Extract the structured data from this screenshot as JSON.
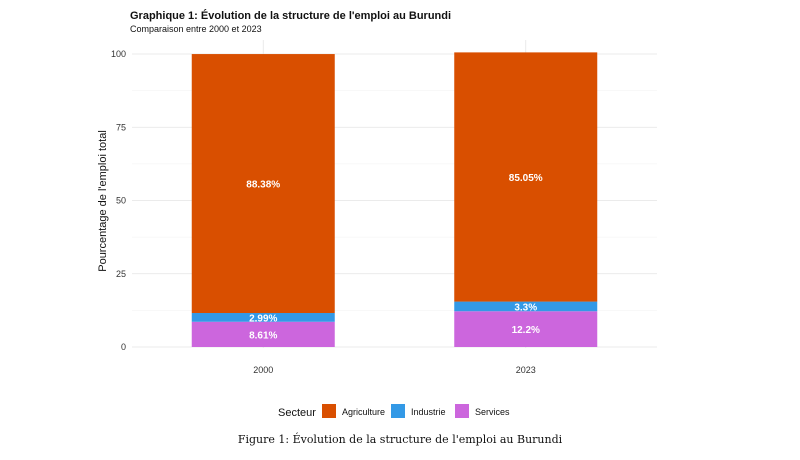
{
  "chart_data": {
    "type": "bar",
    "stacked": true,
    "title": "Graphique 1: Évolution de la structure de l'emploi au Burundi",
    "subtitle": "Comparaison entre 2000 et 2023",
    "xlabel": "",
    "ylabel": "Pourcentage de l'emploi total",
    "ylim": [
      0,
      100
    ],
    "yticks": [
      "0",
      "25",
      "50",
      "75",
      "100"
    ],
    "categories": [
      "2000",
      "2023"
    ],
    "series": [
      {
        "name": "Services",
        "values": [
          8.61,
          12.2
        ],
        "labels": [
          "8.61%",
          "12.2%"
        ],
        "color": "#cc66dd"
      },
      {
        "name": "Industrie",
        "values": [
          2.99,
          3.3
        ],
        "labels": [
          "2.99%",
          "3.3%"
        ],
        "color": "#3399e6"
      },
      {
        "name": "Agriculture",
        "values": [
          88.38,
          85.05
        ],
        "labels": [
          "88.38%",
          "85.05%"
        ],
        "color": "#d94f00"
      }
    ],
    "legend": {
      "title": "Secteur",
      "position": "bottom",
      "order": [
        "Agriculture",
        "Industrie",
        "Services"
      ]
    },
    "grid": true
  },
  "caption": "Figure 1: Évolution de la structure de l'emploi au Burundi"
}
